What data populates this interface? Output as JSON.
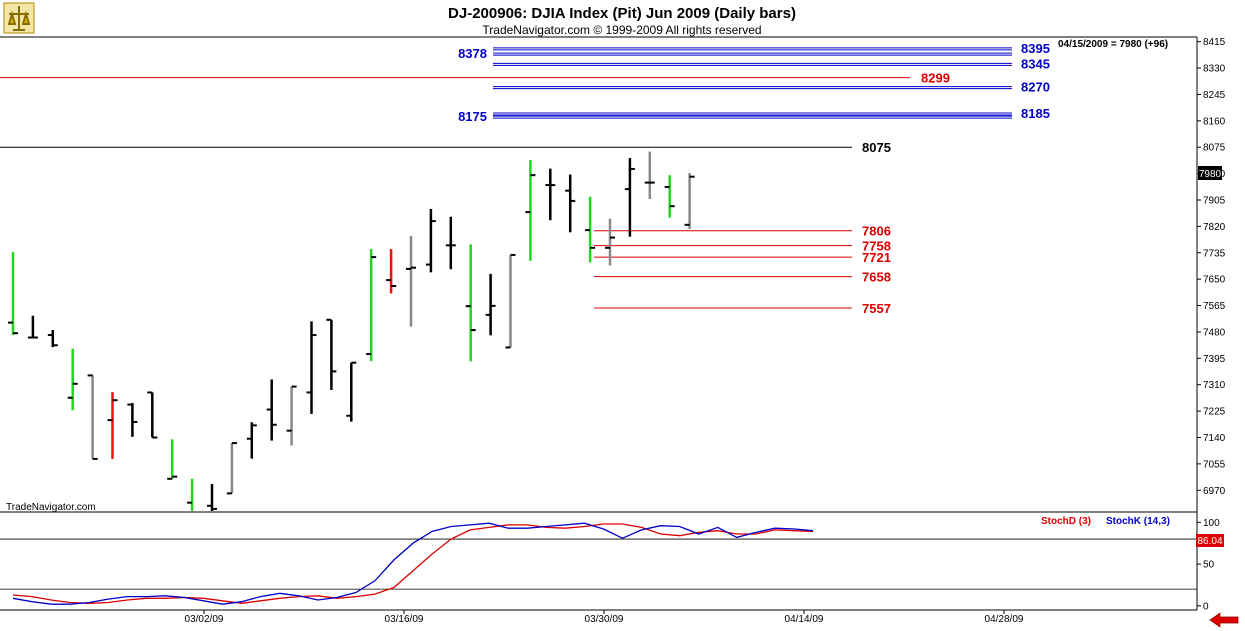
{
  "header": {
    "title": "DJ-200906:  DJIA Index (Pit) Jun 2009  (Daily bars)",
    "subtitle": "TradeNavigator.com © 1999-2009 All rights reserved"
  },
  "watermark": "TradeNavigator.com",
  "logo_icon": "trade-navigator-logo-icon",
  "nav_icon": "left-arrow-icon",
  "last_quote": "04/15/2009 = 7980 (+96)",
  "price_badge": "7980",
  "stoch_badge": "86.04",
  "colors": {
    "up": "#1ed81e",
    "down": "#ee1111",
    "neutral": "#000000",
    "inside": "#888888",
    "blue_level": "#0000cc",
    "red_level": "#dd0000",
    "stochD": "#dd0000",
    "stochK": "#0000cc"
  },
  "chart_data": [
    {
      "type": "ohlc",
      "ylim": [
        6900,
        8430
      ],
      "yticks": [
        8415,
        8330,
        8245,
        8160,
        8075,
        7990,
        7905,
        7820,
        7735,
        7650,
        7565,
        7480,
        7395,
        7310,
        7225,
        7140,
        7055,
        6970
      ],
      "xticks": [
        "03/02/09",
        "03/16/09",
        "03/30/09",
        "04/14/09",
        "04/28/09"
      ],
      "bars": [
        {
          "h": 7737,
          "l": 7470,
          "o": 7510,
          "c": 7476,
          "col": "up"
        },
        {
          "h": 7532,
          "l": 7462,
          "o": 7462,
          "c": 7462,
          "col": "neutral"
        },
        {
          "h": 7486,
          "l": 7431,
          "o": 7470,
          "c": 7437,
          "col": "neutral"
        },
        {
          "h": 7426,
          "l": 7228,
          "o": 7268,
          "c": 7313,
          "col": "up"
        },
        {
          "h": 7340,
          "l": 7071,
          "o": 7340,
          "c": 7071,
          "col": "inside"
        },
        {
          "h": 7286,
          "l": 7071,
          "o": 7196,
          "c": 7260,
          "col": "down"
        },
        {
          "h": 7251,
          "l": 7142,
          "o": 7246,
          "c": 7190,
          "col": "neutral"
        },
        {
          "h": 7285,
          "l": 7140,
          "o": 7285,
          "c": 7140,
          "col": "neutral"
        },
        {
          "h": 7134,
          "l": 7007,
          "o": 7007,
          "c": 7014,
          "col": "up"
        },
        {
          "h": 7007,
          "l": 6900,
          "o": 6930,
          "c": 6900,
          "col": "up"
        },
        {
          "h": 6990,
          "l": 6900,
          "o": 6920,
          "c": 6910,
          "col": "neutral"
        },
        {
          "h": 7122,
          "l": 6960,
          "o": 6960,
          "c": 7122,
          "col": "inside"
        },
        {
          "h": 7189,
          "l": 7072,
          "o": 7136,
          "c": 7179,
          "col": "neutral"
        },
        {
          "h": 7327,
          "l": 7130,
          "o": 7230,
          "c": 7181,
          "col": "neutral"
        },
        {
          "h": 7304,
          "l": 7114,
          "o": 7162,
          "c": 7304,
          "col": "inside"
        },
        {
          "h": 7514,
          "l": 7216,
          "o": 7285,
          "c": 7470,
          "col": "neutral"
        },
        {
          "h": 7519,
          "l": 7293,
          "o": 7519,
          "c": 7353,
          "col": "neutral"
        },
        {
          "h": 7381,
          "l": 7191,
          "o": 7210,
          "c": 7381,
          "col": "neutral"
        },
        {
          "h": 7747,
          "l": 7386,
          "o": 7409,
          "c": 7721,
          "col": "up"
        },
        {
          "h": 7747,
          "l": 7604,
          "o": 7647,
          "c": 7628,
          "col": "down"
        },
        {
          "h": 7789,
          "l": 7497,
          "o": 7683,
          "c": 7687,
          "col": "inside"
        },
        {
          "h": 7876,
          "l": 7672,
          "o": 7697,
          "c": 7837,
          "col": "neutral"
        },
        {
          "h": 7851,
          "l": 7682,
          "o": 7759,
          "c": 7759,
          "col": "neutral"
        },
        {
          "h": 7762,
          "l": 7385,
          "o": 7563,
          "c": 7486,
          "col": "up"
        },
        {
          "h": 7667,
          "l": 7469,
          "o": 7535,
          "c": 7564,
          "col": "neutral"
        },
        {
          "h": 7728,
          "l": 7430,
          "o": 7430,
          "c": 7728,
          "col": "inside"
        },
        {
          "h": 8034,
          "l": 7709,
          "o": 7866,
          "c": 7985,
          "col": "up"
        },
        {
          "h": 8006,
          "l": 7840,
          "o": 7953,
          "c": 7953,
          "col": "neutral"
        },
        {
          "h": 7987,
          "l": 7801,
          "o": 7935,
          "c": 7902,
          "col": "neutral"
        },
        {
          "h": 7916,
          "l": 7704,
          "o": 7808,
          "c": 7751,
          "col": "up"
        },
        {
          "h": 7845,
          "l": 7694,
          "o": 7751,
          "c": 7784,
          "col": "inside"
        },
        {
          "h": 8040,
          "l": 7787,
          "o": 7940,
          "c": 8005,
          "col": "neutral"
        },
        {
          "h": 8061,
          "l": 7908,
          "o": 7961,
          "c": 7961,
          "col": "inside"
        },
        {
          "h": 7985,
          "l": 7848,
          "o": 7947,
          "c": 7885,
          "col": "up"
        },
        {
          "h": 7992,
          "l": 7812,
          "o": 7825,
          "c": 7980,
          "col": "inside"
        }
      ],
      "levels": [
        {
          "value": 8395,
          "label": "8395",
          "color": "blue",
          "span": "right"
        },
        {
          "value": 8378,
          "label": "8378",
          "color": "blue",
          "span": "right",
          "label_left": true
        },
        {
          "value": 8345,
          "label": "8345",
          "color": "blue",
          "span": "right"
        },
        {
          "value": 8299,
          "label": "8299",
          "color": "red",
          "span": "full"
        },
        {
          "value": 8270,
          "label": "8270",
          "color": "blue",
          "span": "right"
        },
        {
          "value": 8185,
          "label": "8185",
          "color": "blue",
          "span": "right"
        },
        {
          "value": 8175,
          "label": "8175",
          "color": "blue",
          "span": "right",
          "label_left": true
        },
        {
          "value": 8075,
          "label": "8075",
          "color": "black",
          "span": "full"
        },
        {
          "value": 7806,
          "label": "7806",
          "color": "red",
          "span": "short"
        },
        {
          "value": 7758,
          "label": "7758",
          "color": "red",
          "span": "short"
        },
        {
          "value": 7721,
          "label": "7721",
          "color": "red",
          "span": "short"
        },
        {
          "value": 7658,
          "label": "7658",
          "color": "red",
          "span": "short"
        },
        {
          "value": 7557,
          "label": "7557",
          "color": "red",
          "span": "short"
        }
      ]
    },
    {
      "type": "line",
      "ylim": [
        -5,
        110
      ],
      "yticks": [
        100,
        50,
        0
      ],
      "series": [
        {
          "name": "StochD (3)",
          "values": [
            13,
            11,
            7,
            4,
            3,
            4,
            7,
            9,
            9,
            10,
            9,
            6,
            3,
            6,
            9,
            11,
            12,
            9,
            11,
            14,
            22,
            42,
            62,
            80,
            91,
            94,
            97,
            97,
            94,
            93,
            95,
            98,
            98,
            94,
            86,
            84,
            88,
            90,
            86,
            86,
            91,
            90,
            89
          ]
        },
        {
          "name": "StochK (14,3)",
          "values": [
            9,
            5,
            2,
            2,
            4,
            8,
            11,
            11,
            12,
            10,
            6,
            2,
            5,
            11,
            15,
            12,
            7,
            10,
            16,
            30,
            55,
            75,
            89,
            95,
            97,
            99,
            93,
            93,
            95,
            97,
            99,
            92,
            81,
            91,
            96,
            95,
            86,
            94,
            82,
            88,
            93,
            92,
            90
          ]
        }
      ]
    }
  ],
  "stoch_legend": {
    "d": "StochD (3)",
    "k": "StochK (14,3)"
  }
}
